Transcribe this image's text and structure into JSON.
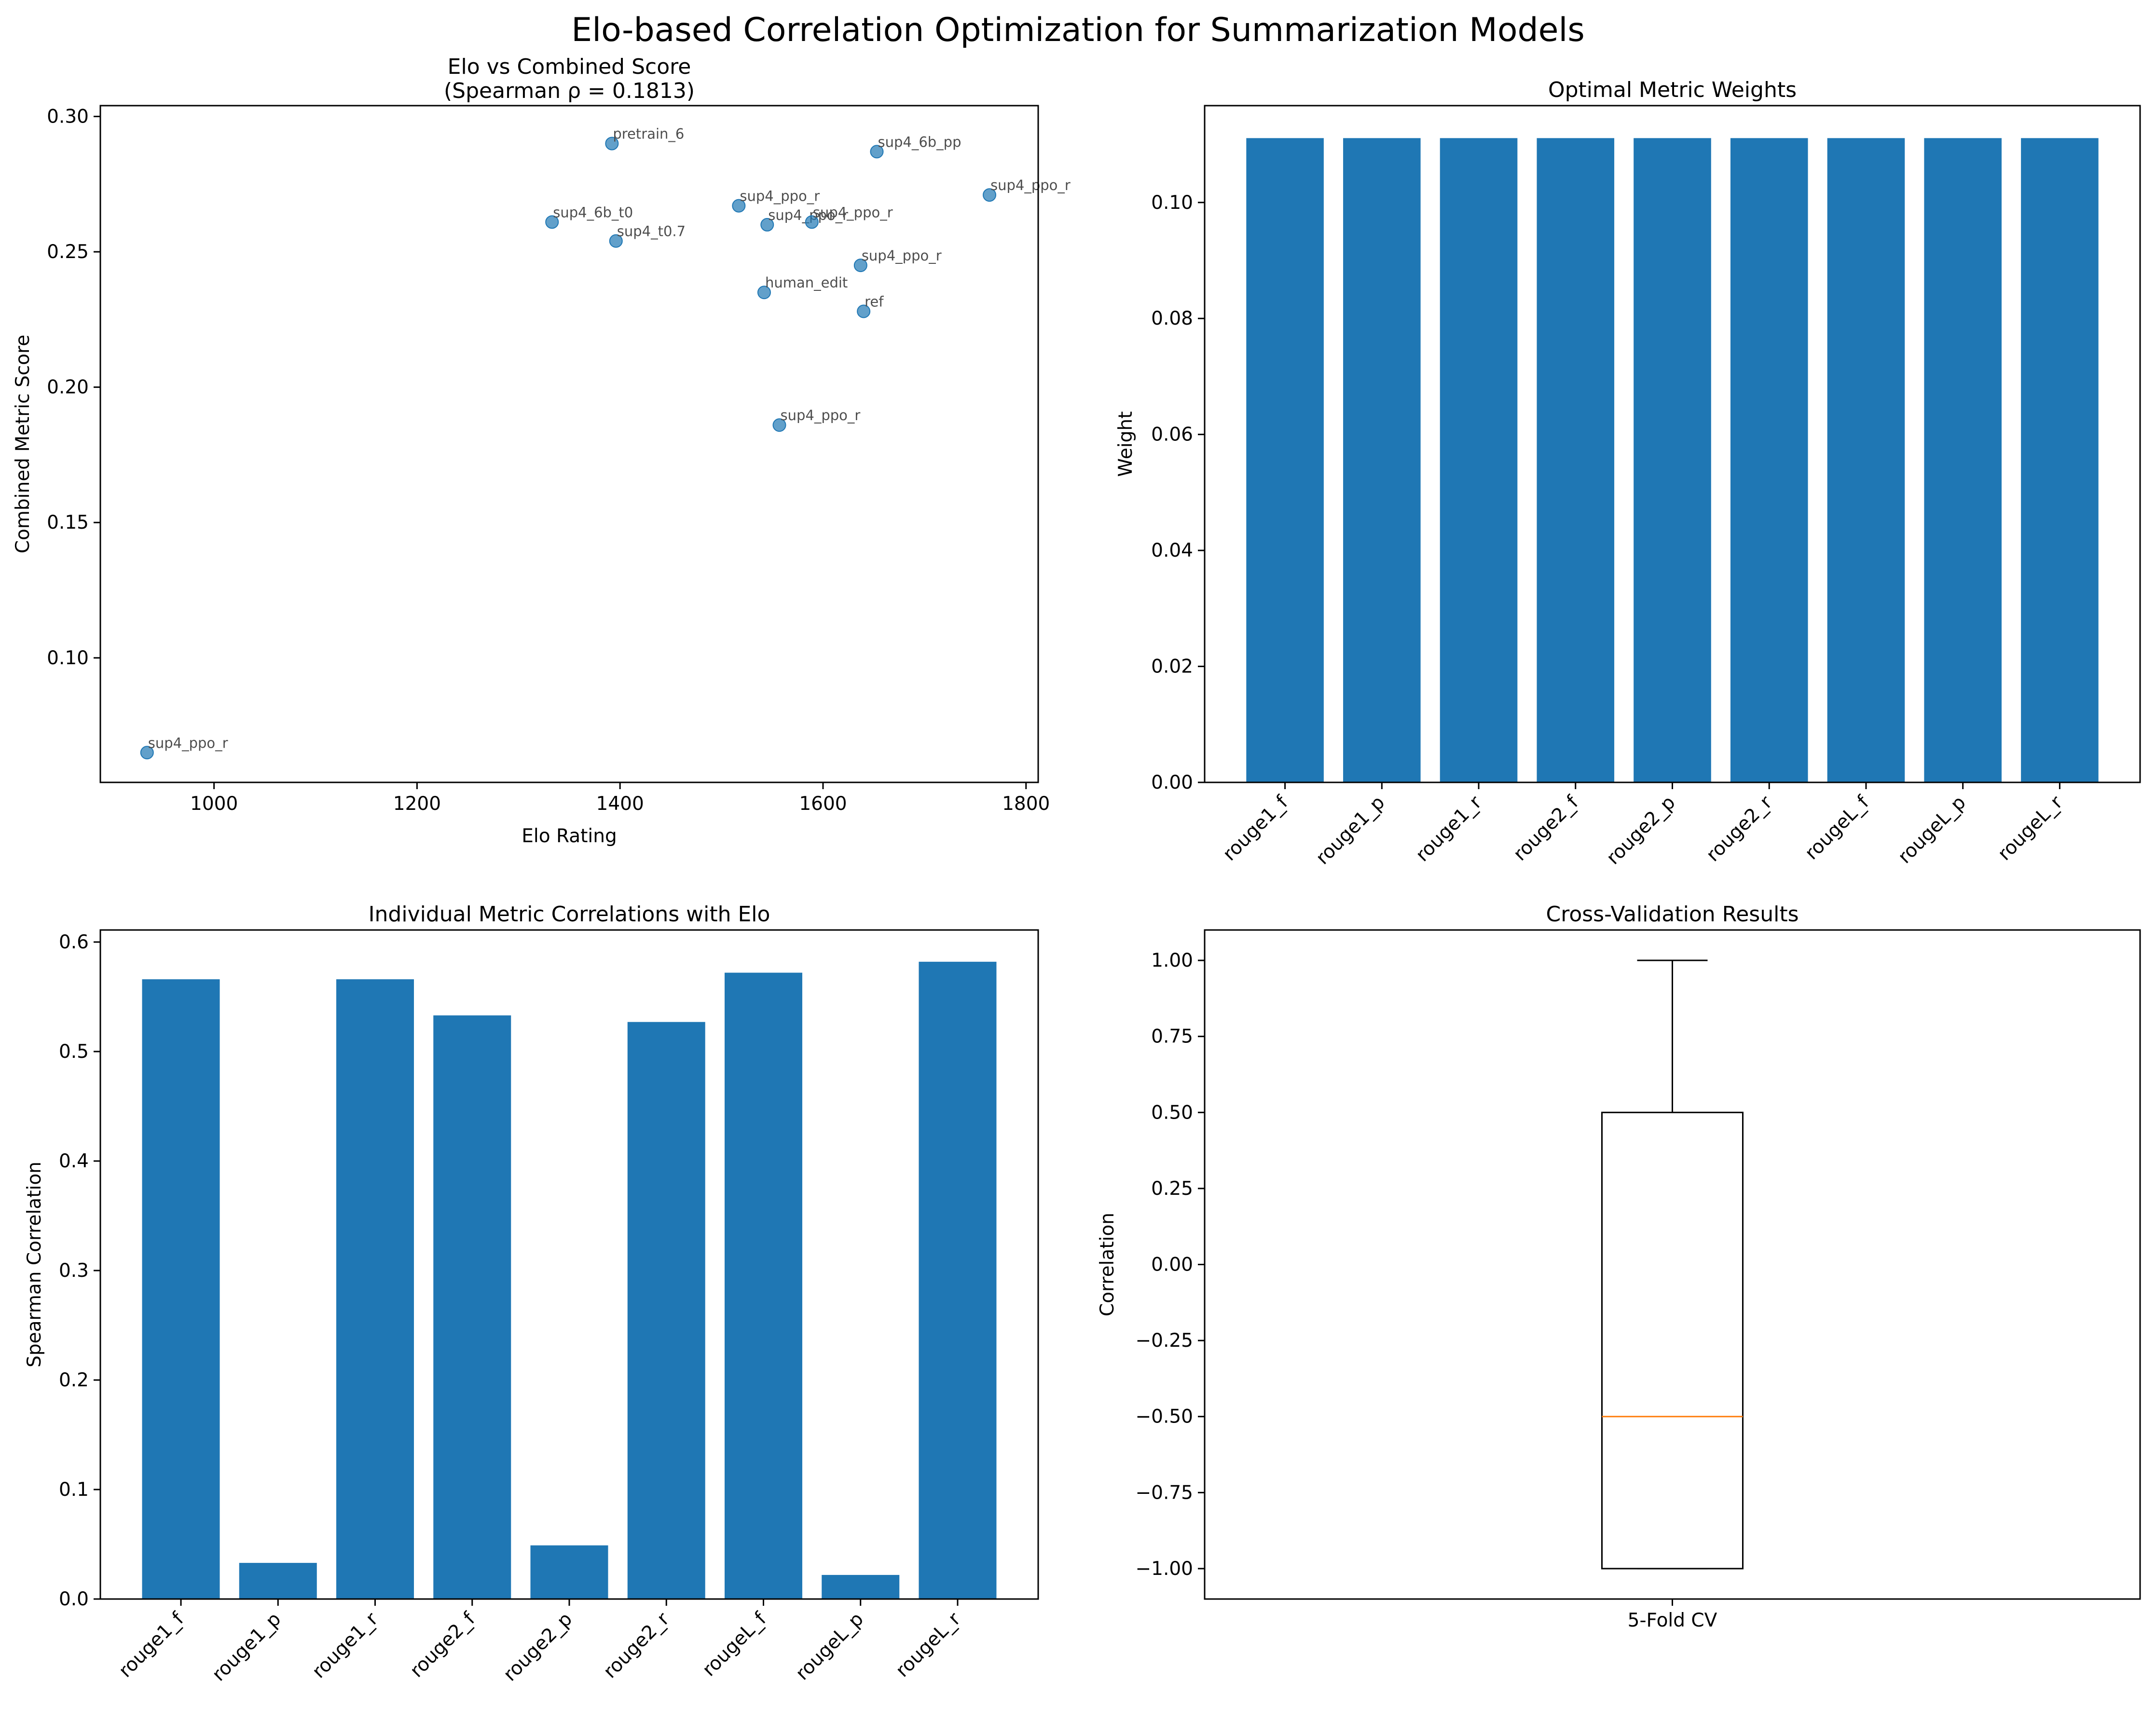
{
  "title": "Elo-based Correlation Optimization for Summarization Models",
  "colors": {
    "bar": "#1f77b4",
    "point": "#1f77b4",
    "median": "#ff7f0e",
    "axes": "#000000"
  },
  "chart_data": [
    {
      "type": "scatter",
      "title": "Elo vs Combined Score",
      "subtitle": "(Spearman ρ = 0.1813)",
      "xlabel": "Elo Rating",
      "ylabel": "Combined Metric Score",
      "xlim": [
        888,
        1812
      ],
      "ylim": [
        0.054,
        0.304
      ],
      "xticks": [
        1000,
        1200,
        1400,
        1600,
        1800
      ],
      "xtick_labels": [
        "1000",
        "1200",
        "1400",
        "1600",
        "1800"
      ],
      "yticks": [
        0.1,
        0.15,
        0.2,
        0.25,
        0.3
      ],
      "ytick_labels": [
        "0.10",
        "0.15",
        "0.20",
        "0.25",
        "0.30"
      ],
      "grid": false,
      "points": [
        {
          "x": 934,
          "y": 0.065,
          "label": "sup4_ppo_r"
        },
        {
          "x": 1333,
          "y": 0.261,
          "label": "sup4_6b_t0"
        },
        {
          "x": 1392,
          "y": 0.29,
          "label": "pretrain_6"
        },
        {
          "x": 1396,
          "y": 0.254,
          "label": "sup4_t0.7"
        },
        {
          "x": 1517,
          "y": 0.267,
          "label": "sup4_ppo_r"
        },
        {
          "x": 1542,
          "y": 0.235,
          "label": "human_edit"
        },
        {
          "x": 1545,
          "y": 0.26,
          "label": "sup4_ppo_r"
        },
        {
          "x": 1557,
          "y": 0.186,
          "label": "sup4_ppo_r"
        },
        {
          "x": 1589,
          "y": 0.261,
          "label": "sup4_ppo_r"
        },
        {
          "x": 1637,
          "y": 0.245,
          "label": "sup4_ppo_r"
        },
        {
          "x": 1640,
          "y": 0.228,
          "label": "ref"
        },
        {
          "x": 1653,
          "y": 0.287,
          "label": "sup4_6b_pp"
        },
        {
          "x": 1764,
          "y": 0.271,
          "label": "sup4_ppo_r"
        }
      ]
    },
    {
      "type": "bar",
      "title": "Optimal Metric Weights",
      "xlabel": "",
      "ylabel": "Weight",
      "ylim": [
        0,
        0.1167
      ],
      "yticks": [
        0.0,
        0.02,
        0.04,
        0.06,
        0.08,
        0.1
      ],
      "ytick_labels": [
        "0.00",
        "0.02",
        "0.04",
        "0.06",
        "0.08",
        "0.10"
      ],
      "grid": false,
      "categories": [
        "rouge1_f",
        "rouge1_p",
        "rouge1_r",
        "rouge2_f",
        "rouge2_p",
        "rouge2_r",
        "rougeL_f",
        "rougeL_p",
        "rougeL_r"
      ],
      "values": [
        0.1111,
        0.1111,
        0.1111,
        0.1111,
        0.1111,
        0.1111,
        0.1111,
        0.1111,
        0.1111
      ]
    },
    {
      "type": "bar",
      "title": "Individual Metric Correlations with Elo",
      "xlabel": "",
      "ylabel": "Spearman Correlation",
      "ylim": [
        0,
        0.611
      ],
      "yticks": [
        0.0,
        0.1,
        0.2,
        0.3,
        0.4,
        0.5,
        0.6
      ],
      "ytick_labels": [
        "0.0",
        "0.1",
        "0.2",
        "0.3",
        "0.4",
        "0.5",
        "0.6"
      ],
      "grid": false,
      "categories": [
        "rouge1_f",
        "rouge1_p",
        "rouge1_r",
        "rouge2_f",
        "rouge2_p",
        "rouge2_r",
        "rougeL_f",
        "rougeL_p",
        "rougeL_r"
      ],
      "values": [
        0.566,
        0.033,
        0.566,
        0.533,
        0.049,
        0.527,
        0.572,
        0.022,
        0.582
      ]
    },
    {
      "type": "box",
      "title": "Cross-Validation Results",
      "xlabel": "",
      "ylabel": "Correlation",
      "ylim": [
        -1.1,
        1.1
      ],
      "yticks": [
        -1.0,
        -0.75,
        -0.5,
        -0.25,
        0.0,
        0.25,
        0.5,
        0.75,
        1.0
      ],
      "ytick_labels": [
        "−1.00",
        "−0.75",
        "−0.50",
        "−0.25",
        "0.00",
        "0.25",
        "0.50",
        "0.75",
        "1.00"
      ],
      "grid": false,
      "categories": [
        "5-Fold CV"
      ],
      "box": {
        "min": -1.0,
        "q1": -1.0,
        "median": -0.5,
        "q3": 0.5,
        "max": 1.0
      }
    }
  ]
}
